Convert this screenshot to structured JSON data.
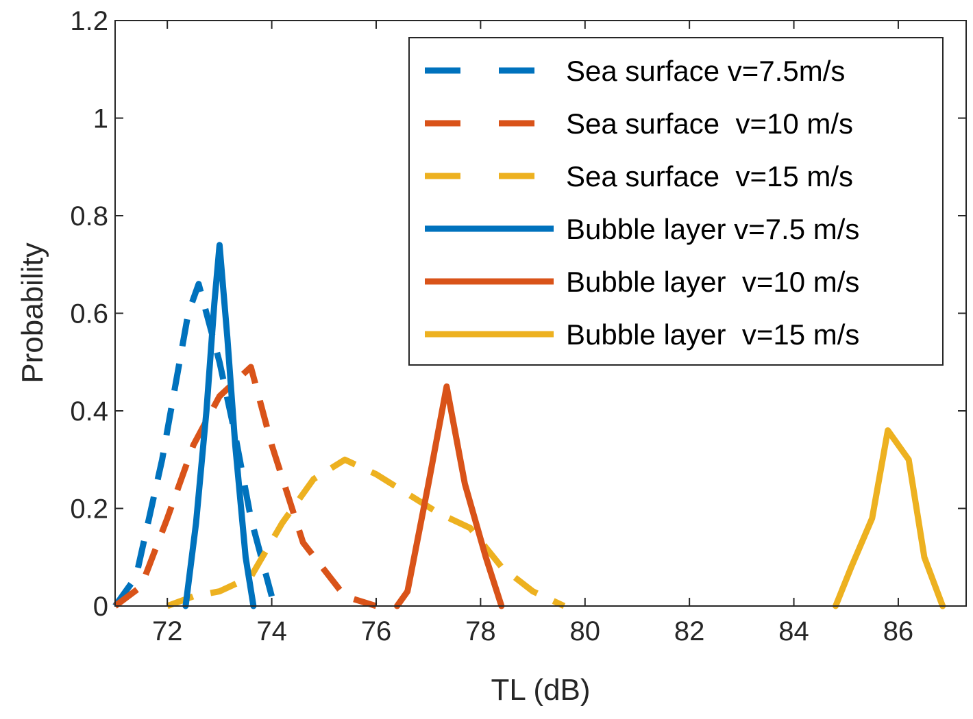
{
  "chart_data": {
    "type": "line",
    "xlabel": "TL (dB)",
    "ylabel": "Probability",
    "xlim": [
      71,
      87.3
    ],
    "ylim": [
      0,
      1.2
    ],
    "x_ticks": [
      72,
      74,
      76,
      78,
      80,
      82,
      84,
      86
    ],
    "y_ticks": [
      0,
      0.2,
      0.4,
      0.6,
      0.8,
      1,
      1.2
    ],
    "x_tick_labels": [
      "72",
      "74",
      "76",
      "78",
      "80",
      "82",
      "84",
      "86"
    ],
    "y_tick_labels": [
      "0",
      "0.2",
      "0.4",
      "0.6",
      "0.8",
      "1",
      "1.2"
    ],
    "grid": false,
    "legend_position": "top-right",
    "series": [
      {
        "name": "Sea surface v=7.5m/s",
        "color": "#0072BD",
        "style": "dashed",
        "x": [
          71.0,
          71.4,
          71.9,
          72.4,
          72.6,
          73.0,
          73.3,
          73.6,
          74.0
        ],
        "y": [
          0.0,
          0.06,
          0.3,
          0.6,
          0.66,
          0.5,
          0.35,
          0.18,
          0.02
        ]
      },
      {
        "name": "Sea surface  v=10 m/s",
        "color": "#D95319",
        "style": "dashed",
        "x": [
          71.0,
          71.5,
          72.0,
          72.5,
          73.0,
          73.6,
          74.0,
          74.6,
          75.4,
          76.0
        ],
        "y": [
          0.0,
          0.04,
          0.18,
          0.33,
          0.43,
          0.49,
          0.33,
          0.13,
          0.02,
          0.0
        ]
      },
      {
        "name": "Sea surface  v=15 m/s",
        "color": "#EDB120",
        "style": "dashed",
        "x": [
          72.0,
          72.5,
          73.0,
          73.6,
          74.2,
          74.8,
          75.4,
          76.0,
          76.6,
          77.2,
          77.8,
          78.4,
          79.0,
          79.6
        ],
        "y": [
          0.0,
          0.02,
          0.03,
          0.06,
          0.17,
          0.26,
          0.3,
          0.27,
          0.23,
          0.19,
          0.16,
          0.08,
          0.03,
          0.0
        ]
      },
      {
        "name": "Bubble layer v=7.5 m/s",
        "color": "#0072BD",
        "style": "solid",
        "x": [
          72.35,
          72.55,
          72.75,
          72.9,
          73.0,
          73.15,
          73.3,
          73.5,
          73.65
        ],
        "y": [
          0.0,
          0.17,
          0.4,
          0.62,
          0.74,
          0.55,
          0.33,
          0.1,
          0.0
        ]
      },
      {
        "name": "Bubble layer  v=10 m/s",
        "color": "#D95319",
        "style": "solid",
        "x": [
          76.4,
          76.6,
          77.0,
          77.35,
          77.7,
          78.1,
          78.4
        ],
        "y": [
          0.0,
          0.03,
          0.25,
          0.45,
          0.25,
          0.1,
          0.0
        ]
      },
      {
        "name": "Bubble layer  v=15 m/s",
        "color": "#EDB120",
        "style": "solid",
        "x": [
          84.8,
          85.1,
          85.5,
          85.8,
          86.2,
          86.5,
          86.85
        ],
        "y": [
          0.0,
          0.08,
          0.18,
          0.36,
          0.3,
          0.1,
          0.0
        ]
      }
    ]
  }
}
